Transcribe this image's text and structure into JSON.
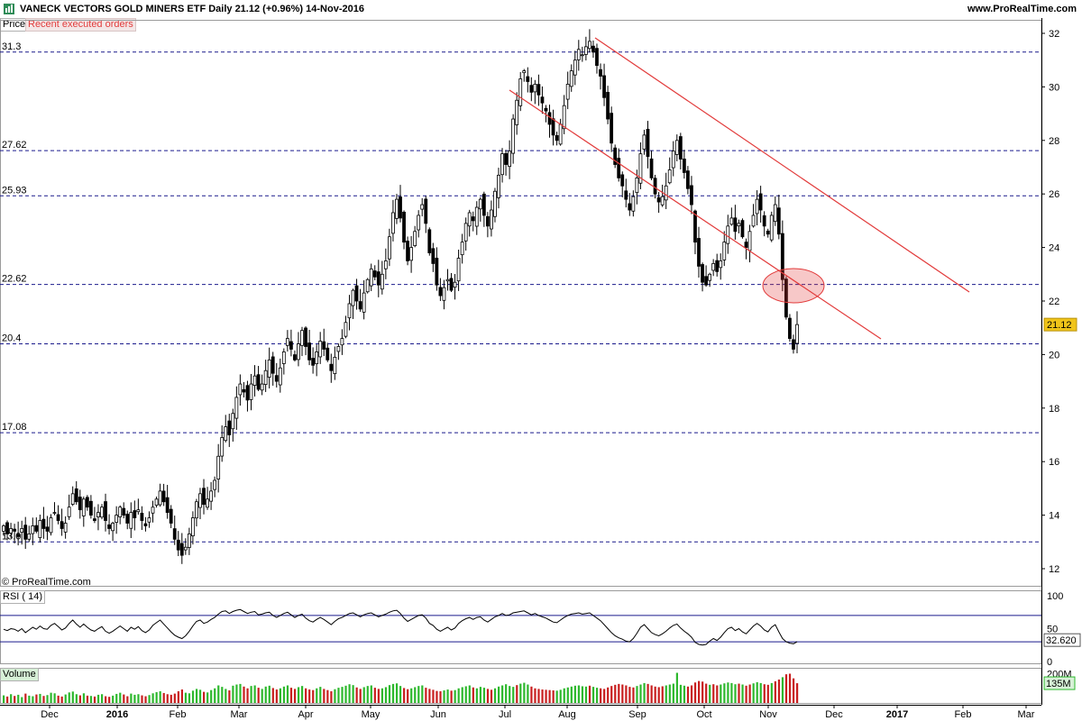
{
  "header": {
    "title": "VANECK VECTORS GOLD MINERS ETF   Daily   21.12 (+0.96%)   14-Nov-2016",
    "site": "www.ProRealTime.com"
  },
  "tabs": {
    "price": "Price",
    "recent_orders": "Recent executed orders"
  },
  "credit": "© ProRealTime.com",
  "colors": {
    "trendline": "#e23b3b",
    "hline": "#1a1a8c",
    "rsi_line": "#000000",
    "vol_up": "#2db82d",
    "vol_down": "#c81e1e",
    "last_badge": "#f0c419"
  },
  "chart_data": [
    {
      "type": "candlestick",
      "title": "VANECK VECTORS GOLD MINERS ETF",
      "ylim": [
        11.7,
        32.3
      ],
      "y_ticks": [
        12,
        14,
        16,
        18,
        20,
        22,
        24,
        26,
        28,
        30,
        32
      ],
      "x_months": [
        "Dec",
        "2016",
        "Feb",
        "Mar",
        "Apr",
        "May",
        "Jun",
        "Jul",
        "Aug",
        "Sep",
        "Oct",
        "Nov",
        "Dec",
        "2017",
        "Feb",
        "Mar"
      ],
      "levels": [
        {
          "label": "31.3",
          "value": 31.3
        },
        {
          "label": "27.62",
          "value": 27.62
        },
        {
          "label": "25.93",
          "value": 25.93
        },
        {
          "label": "22.62",
          "value": 22.62
        },
        {
          "label": "20.4",
          "value": 20.4
        },
        {
          "label": "17.08",
          "value": 17.08
        },
        {
          "label": "13.0",
          "value": 13.0
        }
      ],
      "last_value": "21.12",
      "closes": [
        13.6,
        13.3,
        13.5,
        13.4,
        13.2,
        13.5,
        13.1,
        13.3,
        13.6,
        13.4,
        13.8,
        13.5,
        13.4,
        13.9,
        14.1,
        13.8,
        13.5,
        13.7,
        14.3,
        14.8,
        14.5,
        14.2,
        14.6,
        14.3,
        14.0,
        13.8,
        14.1,
        14.3,
        13.8,
        13.5,
        13.7,
        14.0,
        14.3,
        14.0,
        13.7,
        14.1,
        13.9,
        14.2,
        13.8,
        13.6,
        13.9,
        14.3,
        14.6,
        14.9,
        14.5,
        14.1,
        13.7,
        13.1,
        12.7,
        12.5,
        12.8,
        13.3,
        13.9,
        14.5,
        14.8,
        14.4,
        14.6,
        14.9,
        15.3,
        16.2,
        16.9,
        17.3,
        17.0,
        17.8,
        18.4,
        18.9,
        18.6,
        18.3,
        18.9,
        19.2,
        18.7,
        18.9,
        19.4,
        19.8,
        19.3,
        19.0,
        19.5,
        20.1,
        20.6,
        20.2,
        19.8,
        20.4,
        20.9,
        20.3,
        19.8,
        19.6,
        20.1,
        20.5,
        20.2,
        19.8,
        19.4,
        19.9,
        20.3,
        20.6,
        21.2,
        21.9,
        22.4,
        22.0,
        21.7,
        22.3,
        22.8,
        23.2,
        22.9,
        22.6,
        23.0,
        23.5,
        24.4,
        25.3,
        25.8,
        25.1,
        24.2,
        23.5,
        24.0,
        24.6,
        25.2,
        25.6,
        24.9,
        23.8,
        23.4,
        22.6,
        22.2,
        22.5,
        22.8,
        22.4,
        22.7,
        23.6,
        24.2,
        24.9,
        25.3,
        25.0,
        25.5,
        25.8,
        25.2,
        24.8,
        25.4,
        26.1,
        26.7,
        27.5,
        27.1,
        27.6,
        28.8,
        29.5,
        30.3,
        30.6,
        30.2,
        29.8,
        30.1,
        29.7,
        29.4,
        29.1,
        28.6,
        28.2,
        28.0,
        28.6,
        29.3,
        30.1,
        30.6,
        31.0,
        31.4,
        31.2,
        31.5,
        31.7,
        31.3,
        30.8,
        30.4,
        29.6,
        28.8,
        27.9,
        27.1,
        26.6,
        26.3,
        25.8,
        25.4,
        25.9,
        26.6,
        27.5,
        28.2,
        27.4,
        26.6,
        26.0,
        25.7,
        25.9,
        26.3,
        26.9,
        27.6,
        28.0,
        27.3,
        26.8,
        26.2,
        25.6,
        24.2,
        23.3,
        22.7,
        22.6,
        23.0,
        23.4,
        23.1,
        23.5,
        24.2,
        24.8,
        25.1,
        24.6,
        24.9,
        24.4,
        24.0,
        24.6,
        25.2,
        25.8,
        25.4,
        24.8,
        24.5,
        25.2,
        25.6,
        24.5,
        22.8,
        21.4,
        20.6,
        20.2,
        21.12
      ]
    },
    {
      "type": "line",
      "title": "RSI ( 14)",
      "ylim": [
        0,
        100
      ],
      "y_ticks": [
        0,
        50,
        100
      ],
      "levels": [
        70,
        30
      ],
      "last_value": "32.620",
      "values": [
        49,
        47,
        50,
        49,
        46,
        50,
        44,
        48,
        52,
        49,
        54,
        50,
        49,
        55,
        58,
        53,
        48,
        51,
        58,
        63,
        57,
        52,
        57,
        52,
        48,
        46,
        50,
        53,
        46,
        43,
        46,
        50,
        54,
        50,
        46,
        52,
        49,
        53,
        47,
        44,
        48,
        55,
        59,
        63,
        57,
        51,
        45,
        40,
        37,
        35,
        39,
        46,
        54,
        61,
        63,
        58,
        60,
        64,
        67,
        72,
        76,
        77,
        73,
        76,
        78,
        79,
        76,
        73,
        75,
        76,
        71,
        72,
        74,
        75,
        70,
        67,
        70,
        73,
        75,
        71,
        67,
        70,
        72,
        66,
        62,
        60,
        64,
        67,
        64,
        60,
        56,
        61,
        65,
        67,
        70,
        73,
        74,
        71,
        68,
        71,
        73,
        74,
        71,
        68,
        70,
        72,
        75,
        77,
        78,
        73,
        66,
        61,
        64,
        67,
        70,
        71,
        66,
        58,
        55,
        49,
        46,
        49,
        52,
        48,
        51,
        58,
        62,
        65,
        67,
        64,
        67,
        68,
        63,
        60,
        64,
        68,
        70,
        73,
        70,
        71,
        74,
        75,
        76,
        77,
        74,
        71,
        73,
        70,
        68,
        66,
        63,
        60,
        59,
        63,
        67,
        70,
        72,
        73,
        74,
        72,
        73,
        74,
        70,
        66,
        62,
        56,
        50,
        44,
        39,
        36,
        34,
        31,
        30,
        35,
        43,
        52,
        56,
        50,
        44,
        41,
        39,
        42,
        46,
        51,
        55,
        57,
        51,
        46,
        42,
        37,
        29,
        26,
        25,
        26,
        31,
        35,
        32,
        37,
        44,
        50,
        52,
        47,
        50,
        45,
        42,
        48,
        54,
        58,
        54,
        48,
        45,
        52,
        56,
        45,
        35,
        30,
        28,
        27,
        30
      ]
    },
    {
      "type": "bar",
      "title": "Volume",
      "y_ticks_labels": [
        "200M",
        "135M"
      ],
      "ylim": [
        0,
        240
      ],
      "values": [
        52,
        44,
        60,
        48,
        56,
        40,
        64,
        50,
        46,
        58,
        62,
        48,
        54,
        70,
        66,
        50,
        44,
        58,
        72,
        78,
        60,
        52,
        66,
        50,
        48,
        44,
        56,
        60,
        46,
        42,
        50,
        62,
        70,
        58,
        46,
        64,
        56,
        60,
        52,
        46,
        54,
        66,
        74,
        80,
        68,
        60,
        56,
        64,
        80,
        92,
        70,
        66,
        84,
        96,
        90,
        76,
        72,
        88,
        100,
        120,
        110,
        96,
        86,
        118,
        126,
        130,
        112,
        100,
        116,
        120,
        104,
        96,
        112,
        118,
        102,
        92,
        100,
        112,
        120,
        104,
        96,
        108,
        116,
        100,
        92,
        88,
        100,
        110,
        96,
        88,
        80,
        94,
        104,
        110,
        118,
        128,
        122,
        106,
        96,
        108,
        116,
        120,
        104,
        96,
        100,
        108,
        122,
        130,
        134,
        116,
        102,
        94,
        100,
        108,
        116,
        120,
        104,
        96,
        90,
        82,
        80,
        86,
        92,
        84,
        88,
        100,
        108,
        114,
        120,
        106,
        100,
        110,
        104,
        96,
        90,
        100,
        112,
        120,
        128,
        116,
        110,
        122,
        132,
        138,
        126,
        112,
        100,
        96,
        92,
        90,
        88,
        86,
        84,
        90,
        100,
        106,
        112,
        118,
        120,
        114,
        112,
        118,
        110,
        104,
        100,
        96,
        106,
        116,
        124,
        130,
        126,
        120,
        110,
        106,
        116,
        126,
        136,
        130,
        120,
        112,
        108,
        114,
        120,
        126,
        132,
        206,
        124,
        118,
        112,
        120,
        140,
        150,
        146,
        132,
        124,
        128,
        120,
        126,
        134,
        140,
        136,
        128,
        132,
        126,
        118,
        126,
        134,
        142,
        136,
        128,
        124,
        136,
        148,
        160,
        176,
        196,
        200,
        168,
        135
      ],
      "down_days": [
        1,
        3,
        6,
        9,
        11,
        15,
        16,
        21,
        23,
        25,
        28,
        29,
        33,
        34,
        38,
        39,
        44,
        45,
        46,
        47,
        48,
        49,
        55,
        62,
        66,
        67,
        70,
        74,
        75,
        79,
        80,
        83,
        84,
        85,
        88,
        89,
        90,
        97,
        98,
        102,
        103,
        110,
        111,
        116,
        117,
        118,
        119,
        120,
        123,
        129,
        133,
        134,
        141,
        145,
        146,
        147,
        148,
        149,
        150,
        151,
        161,
        164,
        165,
        166,
        167,
        168,
        169,
        170,
        171,
        172,
        173,
        177,
        178,
        179,
        180,
        181,
        188,
        189,
        190,
        191,
        192,
        193,
        195,
        196,
        202,
        204,
        205,
        209,
        210,
        212,
        213,
        215,
        216,
        217,
        218
      ]
    }
  ],
  "rsi_label": "RSI ( 14)",
  "volume_label": "Volume"
}
